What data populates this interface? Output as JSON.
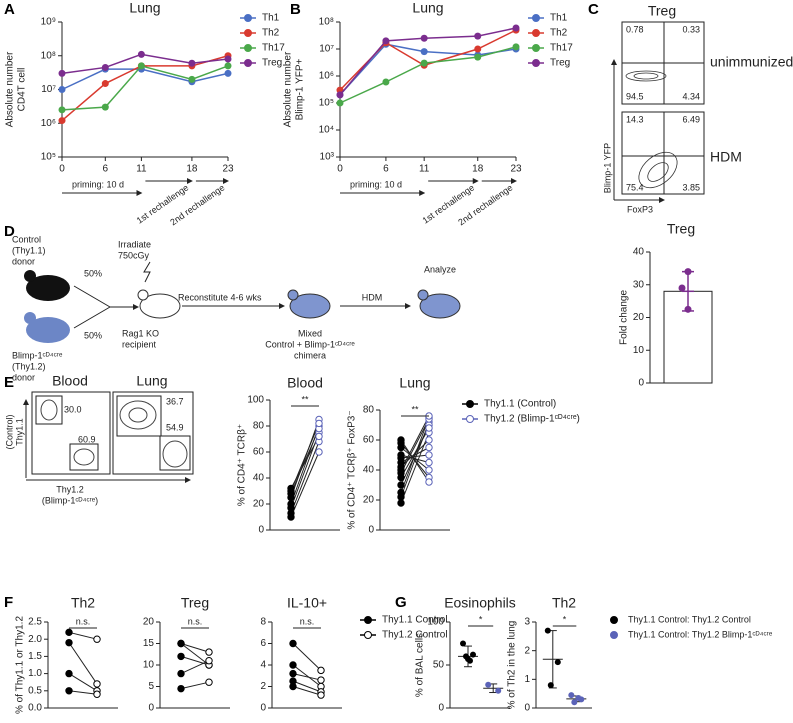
{
  "panel_labels": [
    "A",
    "B",
    "C",
    "D",
    "E",
    "F",
    "G"
  ],
  "flow_c": {
    "title": "Treg",
    "rows": [
      {
        "label": "unimmunized",
        "quadrants": [
          "0.78",
          "0.33",
          "94.5",
          "4.34"
        ]
      },
      {
        "label": "HDM",
        "quadrants": [
          "14.3",
          "6.49",
          "75.4",
          "3.85"
        ]
      }
    ],
    "ylabel": "Blimp-1 YFP",
    "xlabel": "FoxP3"
  },
  "flow_e": {
    "panels": [
      {
        "title": "Blood",
        "gates": [
          "30.0",
          "60.9"
        ]
      },
      {
        "title": "Lung",
        "gates": [
          "36.7",
          "54.9"
        ]
      }
    ],
    "ylabel": [
      "(Control)",
      "Thy1.1"
    ],
    "xlabel": [
      "Thy1.2",
      "(Blimp-1ᶜᴰ⁴ᶜʳᵉ)"
    ]
  },
  "schematic": {
    "control_donor": [
      "Control",
      "(Thy1.1)",
      "donor"
    ],
    "blimp_donor": [
      "Blimp-1ᶜᴰ⁴ᶜʳᵉ",
      "(Thy1.2)",
      "donor"
    ],
    "split": [
      "50%",
      "50%"
    ],
    "irradiate": [
      "Irradiate",
      "750cGy"
    ],
    "recipient": [
      "Rag1 KO",
      "recipient"
    ],
    "reconstitute": "Reconstitute 4-6 wks",
    "chimera": [
      "Mixed",
      "Control + Blimp-1ᶜᴰ⁴ᶜʳᵉ",
      "chimera"
    ],
    "challenge": "HDM",
    "analyze": "Analyze"
  },
  "chart_data": [
    {
      "type": "line",
      "title": "Lung",
      "ylabel": [
        "Absolute number",
        "CD4T cell"
      ],
      "log_y": true,
      "x": [
        0,
        6,
        11,
        18,
        23
      ],
      "xlim": [
        0,
        23
      ],
      "xticks": [
        0,
        6,
        11,
        18,
        23
      ],
      "ylim": [
        100000,
        1000000000
      ],
      "yticks": [
        {
          "value": 100000,
          "label": "10⁵"
        },
        {
          "value": 1000000,
          "label": "10⁶"
        },
        {
          "value": 10000000,
          "label": "10⁷"
        },
        {
          "value": 100000000,
          "label": "10⁸"
        },
        {
          "value": 1000000000,
          "label": "10⁹"
        }
      ],
      "annotations": [
        "priming: 10 d",
        "1st rechallenge",
        "2nd rechallenge"
      ],
      "series": [
        {
          "name": "Th1",
          "color": "#4a6fc4",
          "values": [
            10000000,
            40000000,
            40000000,
            17000000,
            30000000
          ]
        },
        {
          "name": "Th2",
          "color": "#d93a2f",
          "values": [
            1200000,
            15000000,
            50000000,
            50000000,
            100000000
          ]
        },
        {
          "name": "Th17",
          "color": "#4aa84a",
          "values": [
            2500000,
            3000000,
            50000000,
            20000000,
            50000000
          ]
        },
        {
          "name": "Treg",
          "color": "#7b2d8e",
          "values": [
            30000000,
            45000000,
            110000000,
            60000000,
            80000000
          ]
        }
      ]
    },
    {
      "type": "line",
      "title": "Lung",
      "ylabel": [
        "Absolute number",
        "Blimp-1 YFP+"
      ],
      "log_y": true,
      "x": [
        0,
        6,
        11,
        18,
        23
      ],
      "xlim": [
        0,
        23
      ],
      "xticks": [
        0,
        6,
        11,
        18,
        23
      ],
      "ylim": [
        1000,
        100000000
      ],
      "yticks": [
        {
          "value": 1000,
          "label": "10³"
        },
        {
          "value": 10000,
          "label": "10⁴"
        },
        {
          "value": 100000,
          "label": "10⁵"
        },
        {
          "value": 1000000,
          "label": "10⁶"
        },
        {
          "value": 10000000,
          "label": "10⁷"
        },
        {
          "value": 100000000,
          "label": "10⁸"
        }
      ],
      "annotations": [
        "priming: 10 d",
        "1st rechallenge",
        "2nd rechallenge"
      ],
      "series": [
        {
          "name": "Th1",
          "color": "#4a6fc4",
          "values": [
            200000,
            15000000,
            8000000,
            6000000,
            10000000
          ]
        },
        {
          "name": "Th2",
          "color": "#d93a2f",
          "values": [
            300000,
            17000000,
            2500000,
            10000000,
            50000000
          ]
        },
        {
          "name": "Th17",
          "color": "#4aa84a",
          "values": [
            100000,
            600000,
            3000000,
            5000000,
            12000000
          ]
        },
        {
          "name": "Treg",
          "color": "#7b2d8e",
          "values": [
            200000,
            20000000,
            25000000,
            30000000,
            60000000
          ]
        }
      ]
    },
    {
      "type": "bar",
      "title": "Treg",
      "ylabel": [
        "Fold change"
      ],
      "values": [
        28
      ],
      "errors": [
        6
      ],
      "points": [
        34,
        29,
        22.5
      ],
      "color": "#7b2d8e",
      "ylim": [
        0,
        40
      ],
      "yticks": [
        0,
        10,
        20,
        30,
        40
      ]
    },
    {
      "type": "paired",
      "title": "Blood",
      "ylabel": [
        "% of CD4⁺ TCRβ⁺"
      ],
      "annotation": "**",
      "ylim": [
        0,
        100
      ],
      "yticks": [
        0,
        20,
        40,
        60,
        80,
        100
      ],
      "series": [
        {
          "name": "Thy1.1 (Control)",
          "color": "#000000",
          "marker": "filled",
          "values": [
            10,
            13,
            17,
            20,
            25,
            28,
            32,
            30
          ]
        },
        {
          "name": "Thy1.2 (Blimp-1ᶜᴰ⁴ᶜʳᵉ)",
          "color": "#5b63b8",
          "marker": "open",
          "values": [
            60,
            68,
            75,
            80,
            85,
            78,
            72,
            82
          ]
        }
      ]
    },
    {
      "type": "paired",
      "title": "Lung",
      "ylabel": [
        "% of CD4⁺ TCRβ⁺ FoxP3⁻"
      ],
      "annotation": "**",
      "ylim": [
        0,
        80
      ],
      "yticks": [
        0,
        20,
        40,
        60,
        80
      ],
      "series": [
        {
          "color": "#000000",
          "marker": "filled",
          "values": [
            18,
            22,
            25,
            30,
            35,
            38,
            40,
            42,
            45,
            48,
            50,
            55,
            58,
            60
          ]
        },
        {
          "color": "#5b63b8",
          "marker": "open",
          "values": [
            65,
            72,
            75,
            70,
            68,
            74,
            76,
            60,
            55,
            50,
            45,
            40,
            35,
            32
          ]
        }
      ]
    },
    {
      "type": "paired",
      "title": "Th2",
      "ylabel": [
        "% of Thy1.1 or Thy1.2"
      ],
      "annotation": "n.s.",
      "ylim": [
        0,
        2.5
      ],
      "yticks": [
        {
          "value": 0,
          "label": "0.0"
        },
        0.5,
        {
          "value": 1,
          "label": "1.0"
        },
        1.5,
        {
          "value": 2,
          "label": "2.0"
        },
        2.5
      ],
      "series": [
        {
          "color": "#000000",
          "marker": "filled",
          "values": [
            2.2,
            1.9,
            1.0,
            0.5
          ]
        },
        {
          "color": "#000000",
          "marker": "open",
          "values": [
            2.0,
            0.7,
            0.5,
            0.4
          ]
        }
      ]
    },
    {
      "type": "paired",
      "title": "Treg",
      "annotation": "n.s.",
      "ylim": [
        0,
        20
      ],
      "yticks": [
        0,
        5,
        10,
        15,
        20
      ],
      "series": [
        {
          "color": "#000000",
          "marker": "filled",
          "values": [
            15,
            15,
            12,
            8,
            4.5
          ]
        },
        {
          "color": "#000000",
          "marker": "open",
          "values": [
            13,
            10,
            10,
            11,
            6
          ]
        }
      ]
    },
    {
      "type": "paired",
      "title": "IL-10+",
      "annotation": "n.s.",
      "ylim": [
        0,
        8
      ],
      "yticks": [
        0,
        2,
        4,
        6,
        8
      ],
      "series": [
        {
          "name": "Thy1.1 Control",
          "color": "#000000",
          "marker": "filled",
          "values": [
            6,
            4,
            3.2,
            2.5,
            2
          ]
        },
        {
          "name": "Thy1.2 Control",
          "color": "#000000",
          "marker": "open",
          "values": [
            3.5,
            2,
            2.6,
            1.5,
            1.2
          ]
        }
      ]
    },
    {
      "type": "dot",
      "title": "Eosinophils",
      "ylabel": [
        "% of BAL cells"
      ],
      "annotation": "*",
      "ylim": [
        0,
        100
      ],
      "yticks": [
        0,
        50,
        100
      ],
      "series": [
        {
          "color": "#000000",
          "values": [
            75,
            62,
            60,
            55,
            57
          ],
          "mean": 60,
          "sd": 12
        },
        {
          "color": "#5b63b8",
          "values": [
            27,
            20
          ],
          "mean": 23,
          "sd": 5
        }
      ]
    },
    {
      "type": "dot",
      "title": "Th2",
      "ylabel": [
        "% of Th2 in the lung"
      ],
      "annotation": "*",
      "ylim": [
        0,
        3
      ],
      "yticks": [
        0,
        1,
        2,
        3
      ],
      "series": [
        {
          "name": "Thy1.1 Control: Thy1.2 Control",
          "color": "#000000",
          "values": [
            2.7,
            1.6,
            0.8
          ],
          "mean": 1.7,
          "sd": 1.0
        },
        {
          "name": "Thy1.1 Control: Thy1.2 Blimp-1ᶜᴰ⁴ᶜʳᵉ",
          "color": "#5b63b8",
          "values": [
            0.45,
            0.3,
            0.2,
            0.35
          ],
          "mean": 0.32,
          "sd": 0.1
        }
      ]
    }
  ]
}
